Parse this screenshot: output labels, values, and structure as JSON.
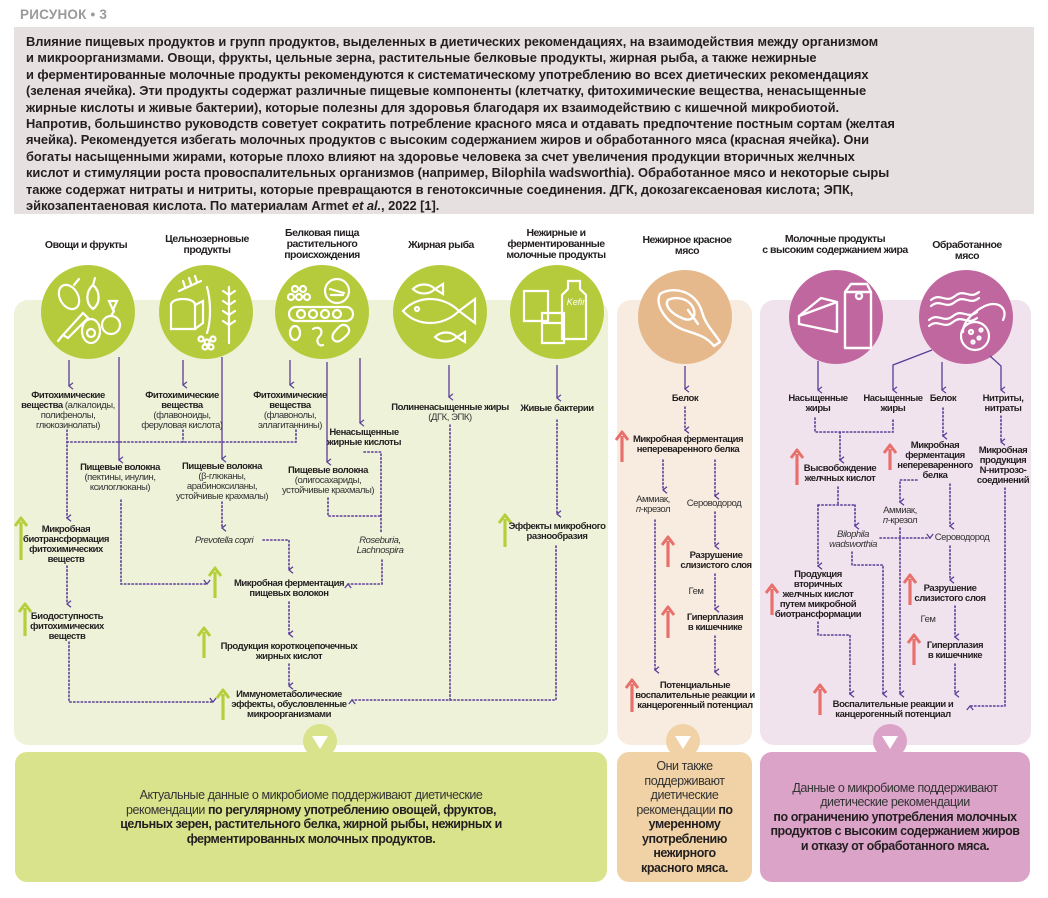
{
  "figure_label": "РИСУНОК • 3",
  "caption": {
    "lines": [
      "Влияние пищевых продуктов и групп продуктов, выделенных в диетических рекомендациях, на взаимодействия между организмом",
      "и микроорганизмами. Овощи, фрукты, цельные зерна, растительные белковые продукты, жирная рыба, а также нежирные",
      "и ферментированные молочные продукты рекомендуются к систематическому употреблению во всех диетических рекомендациях",
      "(зеленая ячейка). Эти продукты содержат различные пищевые компоненты (клетчатку, фитохимические вещества, ненасыщенные",
      "жирные кислоты и живые бактерии), которые полезны для здоровья благодаря их взаимодействию с кишечной микробиотой.",
      "Напротив, большинство руководств советует сократить потребление красного мяса и отдавать предпочтение постным сортам (желтая",
      "ячейка). Рекомендуется избегать молочных продуктов с высоким содержанием жиров и обработанного мяса (красная ячейка). Они",
      "богаты насыщенными жирами, которые плохо влияют на здоровье человека за счет увеличения продукции вторичных желчных",
      "кислот и стимуляции роста провоспалительных организмов (например, Bilophila wadsworthia). Обработанное мясо и некоторые сыры",
      "также содержат нитраты и нитриты, которые превращаются в генотоксичные соединения. ДГК, докозагексаеновая кислота; ЭПК,"
    ],
    "last_line_start": "эйкозапентаеновая кислота. По материалам Armet ",
    "last_line_italic": "et al.",
    "last_line_end": ", 2022 [1]."
  },
  "colors": {
    "green_circle": "#b5cb3c",
    "orange_circle": "#e6b98c",
    "purple_circle": "#c0679f",
    "connector": "#5a3d98",
    "increase_green": "#b5cf3a",
    "increase_red": "#e8706c"
  },
  "categories": [
    {
      "title": "Овощи и фрукты",
      "icon": "vegetables-fruits-icon"
    },
    {
      "title": "Цельнозерновые\nпродукты",
      "icon": "whole-grain-icon"
    },
    {
      "title": "Белковая пища\nрастительного\nпроисхождения",
      "icon": "plant-protein-icon"
    },
    {
      "title": "Жирная рыба",
      "icon": "fish-icon"
    },
    {
      "title": "Нежирные и\nферментированные\nмолочные продукты",
      "icon": "dairy-kefir-icon",
      "icon_text": "Kefir"
    },
    {
      "title": "Нежирное красное\nмясо",
      "icon": "steak-icon"
    },
    {
      "title": "Молочные продукты\nс высоким содержанием жира",
      "icon": "cheese-milk-icon"
    },
    {
      "title": "Обработанное мясо",
      "icon": "bacon-sausage-icon"
    }
  ],
  "green": {
    "phyto1": {
      "title": "Фитохимические\nвещества",
      "detail": " (алкалоиды,\nполифенолы,\nглюкозинолаты)"
    },
    "phyto2": {
      "title": "Фитохимические\nвещества",
      "detail": "\n(флавоноиды,\nферуловая кислота)"
    },
    "phyto3": {
      "title": "Фитохимические\nвещества",
      "detail": "\n(флавонолы,\nэллагитаннины)"
    },
    "unsat": {
      "title": "Ненасыщенные\nжирные кислоты"
    },
    "pufa": {
      "title": "Полиненасыщенные жиры",
      "detail": "\n(ДГК, ЭПК)"
    },
    "live": {
      "title": "Живые бактерии"
    },
    "fiber1": {
      "title": "Пищевые волокна",
      "detail": "\n(пектины, инулин,\nксилоглюканы)"
    },
    "fiber2": {
      "title": "Пищевые волокна",
      "detail": "\n(β-глюканы,\nарабиноксиланы,\nустойчивые крахмалы)"
    },
    "fiber3": {
      "title": "Пищевые волокна",
      "detail": "\n(олигосахариды,\nустойчивые крахмалы)"
    },
    "prevotella": "Prevotella copri",
    "roseburia": "Roseburia,\nLachnospira",
    "biotrans": "Микробная\nбиотрансформация\nфитохимических\nвеществ",
    "bioavail": "Биодоступность\nфитохимических\nвеществ",
    "fiber_ferm": "Микробная ферментация\nпищевых волокон",
    "scfa": "Продукция короткоцепочечных\nжирных кислот",
    "diversity": "Эффекты микробного\nразнообразия",
    "immuno": "Иммунометаболические\nэффекты, обусловленные\nмикроорганизмами"
  },
  "orange": {
    "protein": "Белок",
    "ferm": "Микробная ферментация\nнепереваренного белка",
    "ammonia": "Аммиак,\n",
    "ammonia_italic": "п",
    "ammonia_end": "-крезол",
    "h2s": "Сероводород",
    "mucus": "Разрушение\nслизистого слоя",
    "heme": "Гем",
    "hyperplasia": "Гиперплазия\nв кишечнике",
    "outcome": "Потенциальные\nвоспалительные реакции и\nканцерогенный потенциал"
  },
  "purple": {
    "satfat1": "Насыщенные\nжиры",
    "satfat2": "Насыщенные\nжиры",
    "protein": "Белок",
    "nitrites": "Нитриты,\nнитраты",
    "bile_release": "Высвобождение\nжелчных кислот",
    "ferm": "Микробная\nферментация\nнепереваренного\nбелка",
    "nitroso": "Микробная\nпродукция\nN-нитрозо-\nсоединений",
    "ammonia": "Аммиак,\n",
    "ammonia_italic": "п",
    "ammonia_end": "-крезол",
    "bilophila": "Bilophila\nwadsworthia",
    "h2s": "Сероводород",
    "secondary_bile": "Продукция\nвторичных\nжелчных кислот\nпутем микробной\nбиотрансформации",
    "mucus": "Разрушение\nслизистого слоя",
    "heme": "Гем",
    "hyperplasia": "Гиперплазия\nв кишечнике",
    "outcome": "Воспалительные реакции и\nканцерогенный потенциал"
  },
  "conclusions": {
    "green": {
      "normal": "Актуальные данные о микробиоме поддерживают диетические рекомендации ",
      "bold": "по регулярному употреблению овощей, фруктов, цельных зерен, растительного белка, жирной рыбы, нежирных и ферментированных молочных продуктов."
    },
    "orange": {
      "normal": "Они также поддерживают диетические рекомендации ",
      "bold": "по умеренному употреблению нежирного красного мяса."
    },
    "purple": {
      "normal": "Данные о микробиоме поддерживают диетические рекомендации ",
      "bold": "по ограничению употребления молочных продуктов с высоким содержанием жиров и отказу от обработанного мяса."
    }
  }
}
